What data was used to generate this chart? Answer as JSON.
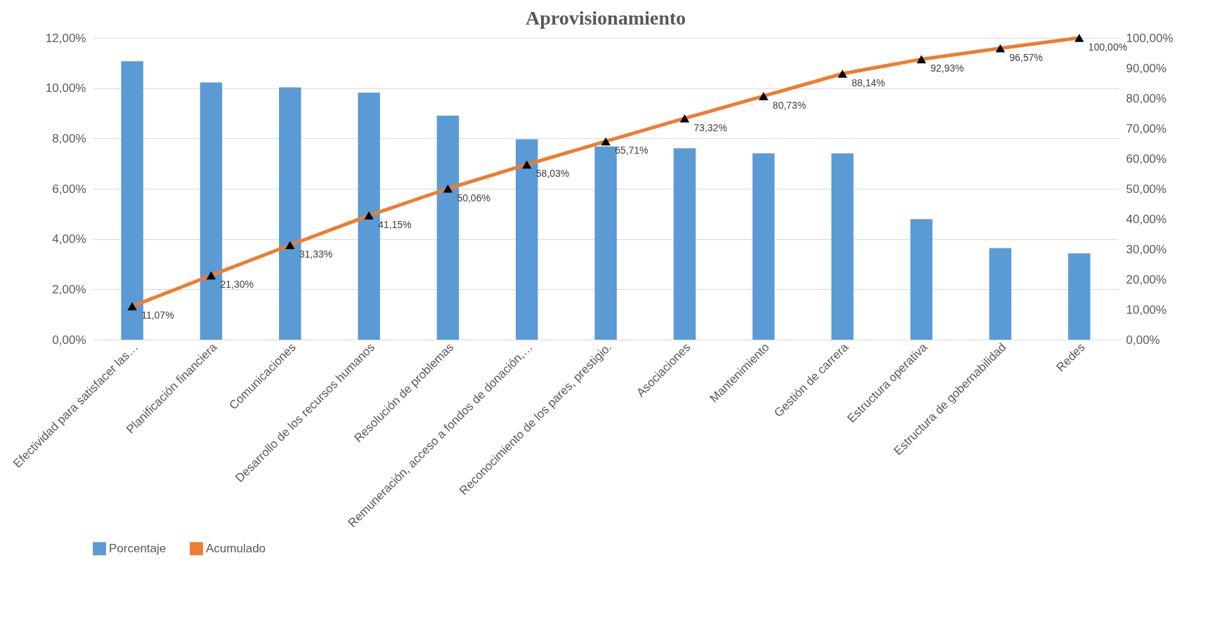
{
  "chart_data": {
    "type": "bar",
    "title": "Aprovisionamiento",
    "categories": [
      "Efectividad para satisfacer las…",
      "Planificación financiera",
      "Comunicaciones",
      "Desarrollo de los recursos humanos",
      "Resolución de problemas",
      "Remuneración, acceso a fondos de donación,…",
      "Reconocimiento de los pares, prestigio.",
      "Asociaciones",
      "Mantenimiento",
      "Gestión de carrera",
      "Estructura operativa",
      "Estructura de gobernabilidad",
      "Redes"
    ],
    "series": [
      {
        "name": "Porcentaje",
        "color": "#5b9bd5",
        "values": [
          11.07,
          10.23,
          10.03,
          9.82,
          8.91,
          7.97,
          7.68,
          7.61,
          7.41,
          7.41,
          4.79,
          3.64,
          3.43
        ]
      },
      {
        "name": "Acumulado",
        "type": "line",
        "axis": "y2",
        "color": "#ed7d31",
        "marker": "triangle",
        "line_style": "solid",
        "values": [
          11.07,
          21.3,
          31.33,
          41.15,
          50.06,
          58.03,
          65.71,
          73.32,
          80.73,
          88.14,
          92.93,
          96.57,
          100
        ],
        "value_labels": [
          "11,07%",
          "21,30%",
          "31,33%",
          "41,15%",
          "50,06%",
          "58,03%",
          "65,71%",
          "73,32%",
          "80,73%",
          "88,14%",
          "92,93%",
          "96,57%",
          "100,00%"
        ]
      }
    ],
    "ylim": [
      0,
      12
    ],
    "yticks": [
      {
        "value": 0,
        "label": "0,00%"
      },
      {
        "value": 2,
        "label": "2,00%"
      },
      {
        "value": 4,
        "label": "4,00%"
      },
      {
        "value": 6,
        "label": "6,00%"
      },
      {
        "value": 8,
        "label": "8,00%"
      },
      {
        "value": 10,
        "label": "10,00%"
      },
      {
        "value": 12,
        "label": "12,00%"
      }
    ],
    "y2lim": [
      0,
      100
    ],
    "y2ticks": [
      {
        "value": 0,
        "label": "0,00%"
      },
      {
        "value": 10,
        "label": "10,00%"
      },
      {
        "value": 20,
        "label": "20,00%"
      },
      {
        "value": 30,
        "label": "30,00%"
      },
      {
        "value": 40,
        "label": "40,00%"
      },
      {
        "value": 50,
        "label": "50,00%"
      },
      {
        "value": 60,
        "label": "60,00%"
      },
      {
        "value": 70,
        "label": "70,00%"
      },
      {
        "value": 80,
        "label": "80,00%"
      },
      {
        "value": 90,
        "label": "90,00%"
      },
      {
        "value": 100,
        "label": "100,00%"
      }
    ],
    "grid": "y",
    "legend": "bottom"
  }
}
